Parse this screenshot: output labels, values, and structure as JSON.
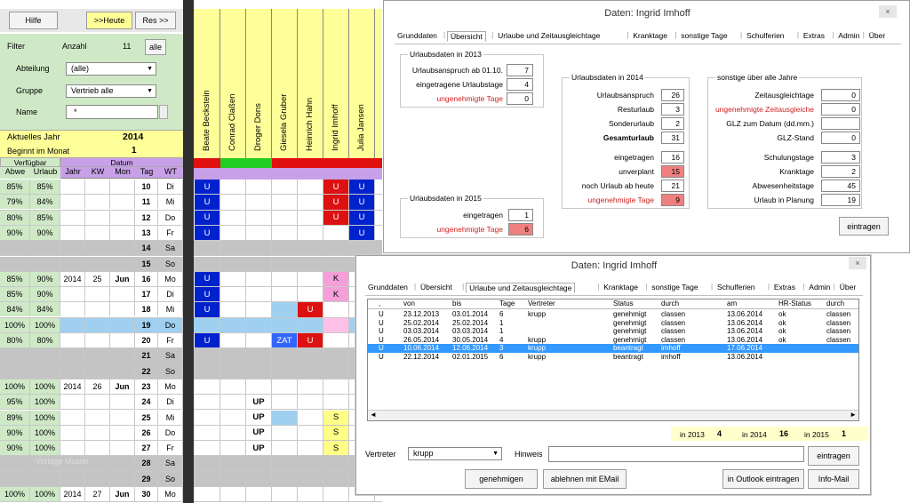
{
  "top_buttons": {
    "hilfe": "Hilfe",
    "heute": ">>Heute",
    "res": "Res >>"
  },
  "filter": {
    "label": "Filter",
    "anzahl_label": "Anzahl",
    "anzahl_value": "11",
    "alle_label": "alle",
    "abteilung_label": "Abteilung",
    "abteilung_value": "(alle)",
    "gruppe_label": "Gruppe",
    "gruppe_value": "Vertrieb alle",
    "name_label": "Name",
    "name_value": "*"
  },
  "year": {
    "label": "Aktuelles Jahr",
    "value": "2014",
    "month_label": "Beginnt im Monat",
    "month_value": "1"
  },
  "col_headers": {
    "verfuegbar": "Verfügbar",
    "datum": "Datum",
    "abwe": "Abwe",
    "urlaub": "Urlaub",
    "jahr": "Jahr",
    "kw": "KW",
    "mon": "Mon",
    "tag": "Tag",
    "wt": "WT"
  },
  "employees": [
    "Beate Beckstein",
    "Conrad Claßen",
    "Droger Dons",
    "Giesela Gruber",
    "Heinrich Hahn",
    "Ingrid Imhoff",
    "Julia Jansen"
  ],
  "rows": [
    {
      "abwe": "85%",
      "urlaub": "85%",
      "jahr": "",
      "kw": "",
      "mon": "",
      "tag": "10",
      "wt": "Di",
      "type": "work",
      "cells": [
        "U",
        "",
        "",
        "",
        "",
        "U",
        "U"
      ]
    },
    {
      "abwe": "79%",
      "urlaub": "84%",
      "jahr": "",
      "kw": "",
      "mon": "",
      "tag": "11",
      "wt": "Mi",
      "type": "work",
      "cells": [
        "U",
        "",
        "",
        "",
        "",
        "U",
        "U"
      ]
    },
    {
      "abwe": "80%",
      "urlaub": "85%",
      "jahr": "",
      "kw": "",
      "mon": "",
      "tag": "12",
      "wt": "Do",
      "type": "work",
      "cells": [
        "U",
        "",
        "",
        "",
        "",
        "U",
        "U"
      ]
    },
    {
      "abwe": "90%",
      "urlaub": "90%",
      "jahr": "",
      "kw": "",
      "mon": "",
      "tag": "13",
      "wt": "Fr",
      "type": "work",
      "cells": [
        "U",
        "",
        "",
        "",
        "",
        "",
        "U"
      ]
    },
    {
      "abwe": "",
      "urlaub": "",
      "jahr": "",
      "kw": "",
      "mon": "",
      "tag": "14",
      "wt": "Sa",
      "type": "weekend",
      "cells": [
        "",
        "",
        "",
        "",
        "",
        "",
        ""
      ]
    },
    {
      "abwe": "",
      "urlaub": "",
      "jahr": "",
      "kw": "",
      "mon": "",
      "tag": "15",
      "wt": "So",
      "type": "weekend",
      "cells": [
        "",
        "",
        "",
        "",
        "",
        "",
        ""
      ]
    },
    {
      "abwe": "85%",
      "urlaub": "90%",
      "jahr": "2014",
      "kw": "25",
      "mon": "Jun",
      "tag": "16",
      "wt": "Mo",
      "type": "work",
      "cells": [
        "U",
        "",
        "",
        "",
        "",
        "K",
        ""
      ]
    },
    {
      "abwe": "85%",
      "urlaub": "90%",
      "jahr": "",
      "kw": "",
      "mon": "",
      "tag": "17",
      "wt": "Di",
      "type": "work",
      "cells": [
        "U",
        "",
        "",
        "",
        "",
        "K",
        ""
      ]
    },
    {
      "abwe": "84%",
      "urlaub": "84%",
      "jahr": "",
      "kw": "",
      "mon": "",
      "tag": "18",
      "wt": "Mi",
      "type": "work",
      "cells": [
        "U",
        "",
        "",
        "",
        "U",
        "",
        ""
      ]
    },
    {
      "abwe": "100%",
      "urlaub": "100%",
      "jahr": "",
      "kw": "",
      "mon": "",
      "tag": "19",
      "wt": "Do",
      "type": "holiday",
      "cells": [
        "",
        "",
        "",
        "",
        "",
        "",
        ""
      ]
    },
    {
      "abwe": "80%",
      "urlaub": "80%",
      "jahr": "",
      "kw": "",
      "mon": "",
      "tag": "20",
      "wt": "Fr",
      "type": "work",
      "cells": [
        "U",
        "",
        "",
        "ZAT",
        "U",
        "",
        ""
      ]
    },
    {
      "abwe": "",
      "urlaub": "",
      "jahr": "",
      "kw": "",
      "mon": "",
      "tag": "21",
      "wt": "Sa",
      "type": "weekend",
      "cells": [
        "",
        "",
        "",
        "",
        "",
        "",
        ""
      ]
    },
    {
      "abwe": "",
      "urlaub": "",
      "jahr": "",
      "kw": "",
      "mon": "",
      "tag": "22",
      "wt": "So",
      "type": "weekend",
      "cells": [
        "",
        "",
        "",
        "",
        "",
        "",
        ""
      ]
    },
    {
      "abwe": "100%",
      "urlaub": "100%",
      "jahr": "2014",
      "kw": "26",
      "mon": "Jun",
      "tag": "23",
      "wt": "Mo",
      "type": "work",
      "cells": [
        "",
        "",
        "",
        "",
        "",
        "",
        ""
      ]
    },
    {
      "abwe": "95%",
      "urlaub": "100%",
      "jahr": "",
      "kw": "",
      "mon": "",
      "tag": "24",
      "wt": "Di",
      "type": "work",
      "cells": [
        "",
        "",
        "UP",
        "",
        "",
        "",
        ""
      ]
    },
    {
      "abwe": "89%",
      "urlaub": "100%",
      "jahr": "",
      "kw": "",
      "mon": "",
      "tag": "25",
      "wt": "Mi",
      "type": "work",
      "cells": [
        "",
        "",
        "UP",
        "",
        "",
        "S",
        ""
      ]
    },
    {
      "abwe": "90%",
      "urlaub": "100%",
      "jahr": "",
      "kw": "",
      "mon": "",
      "tag": "26",
      "wt": "Do",
      "type": "work",
      "cells": [
        "",
        "",
        "UP",
        "",
        "",
        "S",
        ""
      ]
    },
    {
      "abwe": "90%",
      "urlaub": "100%",
      "jahr": "",
      "kw": "",
      "mon": "",
      "tag": "27",
      "wt": "Fr",
      "type": "work",
      "cells": [
        "",
        "",
        "UP",
        "",
        "",
        "S",
        ""
      ]
    },
    {
      "abwe": "",
      "urlaub": "",
      "jahr": "",
      "kw": "",
      "mon": "",
      "tag": "28",
      "wt": "Sa",
      "type": "weekend",
      "cells": [
        "",
        "",
        "",
        "",
        "",
        "",
        ""
      ]
    },
    {
      "abwe": "",
      "urlaub": "",
      "jahr": "",
      "kw": "",
      "mon": "",
      "tag": "29",
      "wt": "So",
      "type": "weekend",
      "cells": [
        "",
        "",
        "",
        "",
        "",
        "",
        ""
      ]
    },
    {
      "abwe": "100%",
      "urlaub": "100%",
      "jahr": "2014",
      "kw": "27",
      "mon": "Jun",
      "tag": "30",
      "wt": "Mo",
      "type": "work",
      "cells": [
        "",
        "",
        "",
        "",
        "",
        "",
        ""
      ]
    }
  ],
  "dialog1": {
    "title": "Daten: Ingrid Imhoff",
    "tabs": [
      "Grunddaten",
      "Übersicht",
      "Urlaube und Zeitausgleichtage",
      "Kranktage",
      "sonstige Tage",
      "Schulferien",
      "Extras",
      "Admin",
      "Über"
    ],
    "g2013": {
      "title": "Urlaubsdaten in 2013",
      "rows": [
        {
          "label": "Urlaubsanspruch ab 01.10.",
          "value": "7"
        },
        {
          "label": "eingetragene Urlaubstage",
          "value": "4"
        },
        {
          "label": "ungenehmigte Tage",
          "value": "0"
        }
      ]
    },
    "g2014": {
      "title": "Urlaubsdaten in 2014",
      "rows": [
        {
          "label": "Urlaubsanspruch",
          "value": "26"
        },
        {
          "label": "Resturlaub",
          "value": "3"
        },
        {
          "label": "Sonderurlaub",
          "value": "2"
        },
        {
          "label": "Gesamturlaub",
          "value": "31"
        },
        {
          "label": "eingetragen",
          "value": "16"
        },
        {
          "label": "unverplant",
          "value": "15"
        },
        {
          "label": "noch Urlaub ab heute",
          "value": "21"
        },
        {
          "label": "ungenehmigte Tage",
          "value": "9"
        }
      ]
    },
    "g2015": {
      "title": "Urlaubsdaten in 2015",
      "rows": [
        {
          "label": "eingetragen",
          "value": "1"
        },
        {
          "label": "ungenehmigte Tage",
          "value": "6"
        }
      ]
    },
    "gsonst": {
      "title": "sonstige über alle Jahre",
      "rows": [
        {
          "label": "Zeitausgleichtage",
          "value": "0"
        },
        {
          "label": "ungenehmigte Zeitausgleiche",
          "value": "0"
        },
        {
          "label": "GLZ zum Datum (dd.mm.)",
          "value": ""
        },
        {
          "label": "GLZ-Stand",
          "value": "0"
        },
        {
          "label": "Schulungstage",
          "value": "3"
        },
        {
          "label": "Kranktage",
          "value": "2"
        },
        {
          "label": "Abwesenheitstage",
          "value": "45"
        },
        {
          "label": "Urlaub in Planung",
          "value": "19"
        }
      ]
    },
    "eintragen": "eintragen",
    "close": "×"
  },
  "dialog2": {
    "title": "Daten: Ingrid Imhoff",
    "tabs": [
      "Grunddaten",
      "Übersicht",
      "Urlaube und Zeitausgleichtage",
      "Kranktage",
      "sonstige Tage",
      "Schulferien",
      "Extras",
      "Admin",
      "Über"
    ],
    "columns": [
      ",",
      "von",
      "bis",
      "Tage",
      "Vertreter",
      "Status",
      "durch",
      "am",
      "HR-Status",
      "durch"
    ],
    "entries": [
      [
        "U",
        "23.12.2013",
        "03.01.2014",
        "6",
        "krupp",
        "genehmigt",
        "classen",
        "13.06.2014",
        "ok",
        "classen"
      ],
      [
        "U",
        "25.02.2014",
        "25.02.2014",
        "1",
        "",
        "genehmigt",
        "classen",
        "13.06.2014",
        "ok",
        "classen"
      ],
      [
        "U",
        "03.03.2014",
        "03.03.2014",
        "1",
        "",
        "genehmigt",
        "classen",
        "13.06.2014",
        "ok",
        "classen"
      ],
      [
        "U",
        "26.05.2014",
        "30.05.2014",
        "4",
        "krupp",
        "genehmigt",
        "classen",
        "13.06.2014",
        "ok",
        "classen"
      ],
      [
        "U",
        "10.06.2014",
        "12.06.2014",
        "3",
        "krupp",
        "beantragt",
        "imhoff",
        "17.06.2014",
        "",
        ""
      ],
      [
        "U",
        "22.12.2014",
        "02.01.2015",
        "6",
        "krupp",
        "beantragt",
        "imhoff",
        "13.06.2014",
        "",
        ""
      ]
    ],
    "selected_index": 4,
    "summary": [
      {
        "label": "in 2013",
        "value": "4"
      },
      {
        "label": "in 2014",
        "value": "16"
      },
      {
        "label": "in 2015",
        "value": "1"
      }
    ],
    "vertreter_label": "Vertreter",
    "vertreter_value": "krupp",
    "hinweis_label": "Hinweis",
    "hinweis_value": "",
    "btn_eintragen": "eintragen",
    "btn_genehmigen": "genehmigen",
    "btn_ablehnen": "ablehnen mit EMail",
    "btn_outlook": "in Outlook eintragen",
    "btn_info": "Info-Mail",
    "close": "×"
  },
  "watermark": "Vorlage Muster",
  "colors": {
    "green_panel": "#cfe9c7",
    "lilac": "#c8a0e8",
    "blue_u": "#0022cc",
    "red_u": "#dd1111",
    "light_blue": "#9fd0f0",
    "pink_k": "#f5a0d8",
    "yellow_s": "#ffff88",
    "weekend": "#c4c4c4",
    "header_yellow": "#ffff99",
    "selected": "#3399ff"
  }
}
